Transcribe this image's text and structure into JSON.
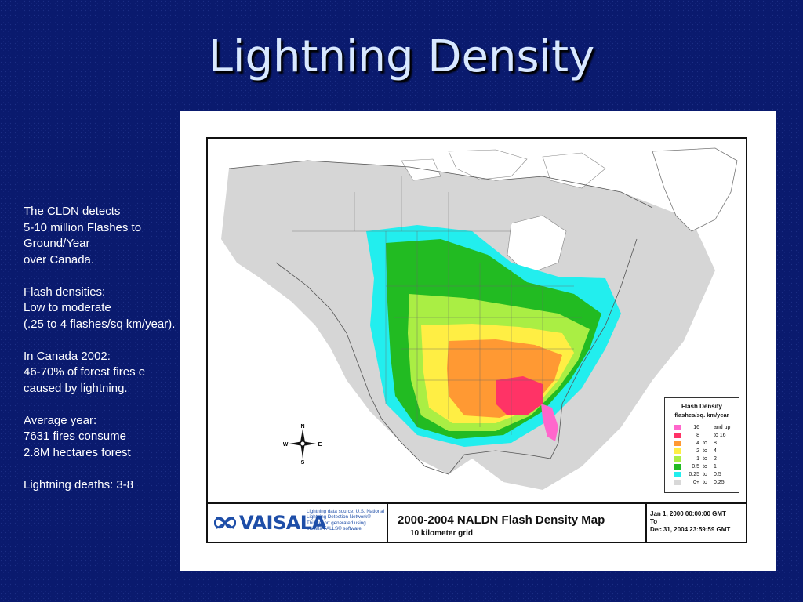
{
  "slide": {
    "title": "Lightning Density",
    "background_color": "#0a1a6e",
    "body_paragraphs": [
      "The CLDN detects\n5-10 million Flashes to Ground/Year\nover Canada.",
      "Flash densities:\nLow to moderate\n(.25 to 4 flashes/sq km/year).",
      "In Canada 2002:\n46-70% of forest fires e caused by lightning.",
      "Average year:\n7631 fires consume\n2.8M hectares forest",
      "Lightning deaths: 3-8"
    ]
  },
  "map": {
    "brand": "VAISALA",
    "source_lines": [
      "Lightning data source: U.S. National",
      "Lightning Detection Network®",
      "This report generated using",
      "Vaisala FALLS® software"
    ],
    "title": "2000-2004 NALDN Flash Density Map",
    "subtitle": "10 kilometer grid",
    "date_range": [
      "Jan 1, 2000 00:00:00 GMT",
      "To",
      "Dec 31, 2004 23:59:59 GMT"
    ],
    "compass": {
      "n": "N",
      "s": "S",
      "e": "E",
      "w": "W"
    },
    "legend": {
      "title": "Flash Density",
      "subtitle": "flashes/sq. km/year",
      "entries": [
        {
          "low": "16",
          "to": "",
          "high": "and up",
          "color": "#ff66cc"
        },
        {
          "low": "8",
          "to": "",
          "high": "to 16",
          "color": "#ff3366"
        },
        {
          "low": "4",
          "to": "to",
          "high": "8",
          "color": "#ff9933"
        },
        {
          "low": "2",
          "to": "to",
          "high": "4",
          "color": "#ffee44"
        },
        {
          "low": "1",
          "to": "to",
          "high": "2",
          "color": "#aaee44"
        },
        {
          "low": "0.5",
          "to": "to",
          "high": "1",
          "color": "#22bb22"
        },
        {
          "low": "0.25",
          "to": "to",
          "high": "0.5",
          "color": "#22eeee"
        },
        {
          "low": "0+",
          "to": "to",
          "high": "0.25",
          "color": "#d8d8d8"
        }
      ]
    }
  }
}
